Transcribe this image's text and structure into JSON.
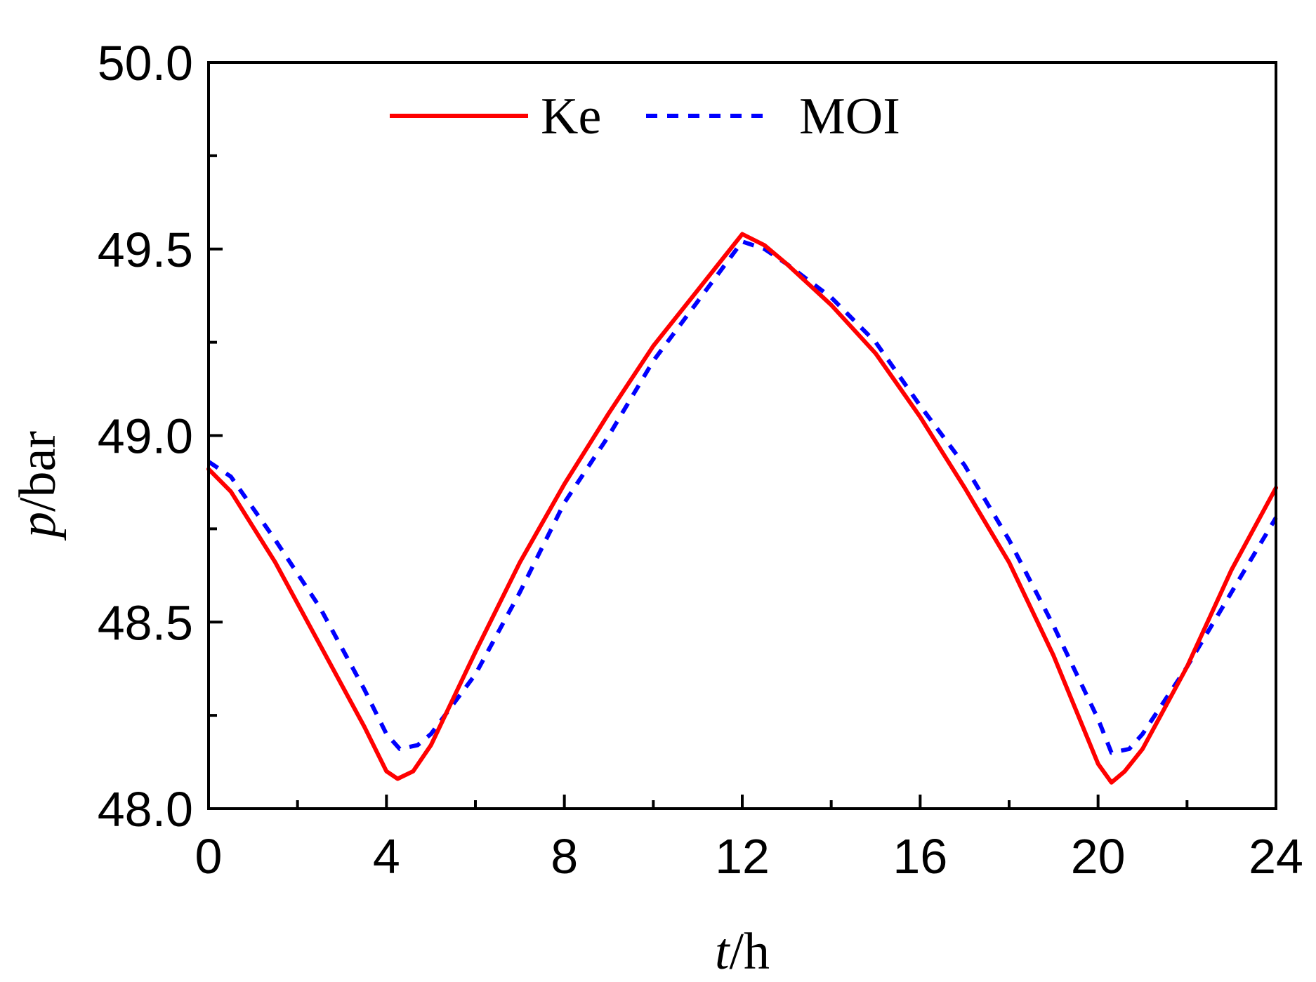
{
  "chart_data": {
    "type": "line",
    "title": "",
    "xlabel": {
      "var": "t",
      "unit": "/h"
    },
    "ylabel": {
      "var": "p",
      "unit": "/bar"
    },
    "xlim": [
      0,
      24
    ],
    "ylim": [
      48.0,
      50.0
    ],
    "xticks": [
      0,
      4,
      8,
      12,
      16,
      20,
      24
    ],
    "xtick_labels": [
      "0",
      "4",
      "8",
      "12",
      "16",
      "20",
      "24"
    ],
    "xminor": [
      2,
      6,
      10,
      14,
      18,
      22
    ],
    "yticks": [
      48.0,
      48.5,
      49.0,
      49.5,
      50.0
    ],
    "ytick_labels": [
      "48.0",
      "48.5",
      "49.0",
      "49.5",
      "50.0"
    ],
    "yminor": [
      48.25,
      48.75,
      49.25,
      49.75
    ],
    "legend_position": "top-center",
    "series": [
      {
        "name": "Ke",
        "color": "#ff0000",
        "style": "solid",
        "x": [
          0,
          0.5,
          1.5,
          2.5,
          3.5,
          4.0,
          4.25,
          4.6,
          5.0,
          6.0,
          7.0,
          8.0,
          9.0,
          10.0,
          11.0,
          12.0,
          12.5,
          13.0,
          14.0,
          15.0,
          16.0,
          17.0,
          18.0,
          19.0,
          20.0,
          20.3,
          20.6,
          21.0,
          22.0,
          23.0,
          24.0
        ],
        "y": [
          48.91,
          48.85,
          48.66,
          48.44,
          48.22,
          48.1,
          48.08,
          48.1,
          48.17,
          48.42,
          48.66,
          48.87,
          49.06,
          49.24,
          49.39,
          49.54,
          49.51,
          49.46,
          49.35,
          49.22,
          49.05,
          48.86,
          48.66,
          48.41,
          48.12,
          48.07,
          48.1,
          48.16,
          48.38,
          48.64,
          48.86
        ]
      },
      {
        "name": "MOI",
        "color": "#0000ff",
        "style": "dashed",
        "x": [
          0,
          0.5,
          1.5,
          2.5,
          3.5,
          4.0,
          4.3,
          4.7,
          5.0,
          6.0,
          7.0,
          8.0,
          9.0,
          10.0,
          11.0,
          12.0,
          12.5,
          13.0,
          14.0,
          15.0,
          16.0,
          17.0,
          18.0,
          19.0,
          20.0,
          20.3,
          20.7,
          21.0,
          22.0,
          23.0,
          24.0
        ],
        "y": [
          48.93,
          48.89,
          48.72,
          48.54,
          48.32,
          48.2,
          48.16,
          48.17,
          48.2,
          48.36,
          48.58,
          48.82,
          49.0,
          49.2,
          49.36,
          49.52,
          49.5,
          49.46,
          49.37,
          49.25,
          49.08,
          48.92,
          48.72,
          48.49,
          48.24,
          48.15,
          48.16,
          48.2,
          48.38,
          48.58,
          48.78
        ]
      }
    ]
  }
}
